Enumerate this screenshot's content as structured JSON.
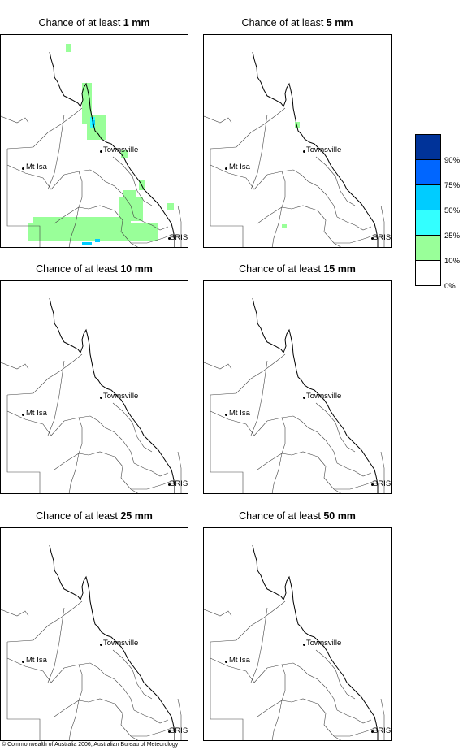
{
  "panels": [
    {
      "prefix": "Chance of at least ",
      "amount": "1 mm"
    },
    {
      "prefix": "Chance of at least ",
      "amount": "5 mm"
    },
    {
      "prefix": "Chance of at least ",
      "amount": "10 mm"
    },
    {
      "prefix": "Chance of at least ",
      "amount": "15 mm"
    },
    {
      "prefix": "Chance of at least ",
      "amount": "25 mm"
    },
    {
      "prefix": "Chance of at least ",
      "amount": "50 mm"
    }
  ],
  "places": {
    "townsville": "Townsville",
    "mt_isa": "Mt Isa",
    "brisbane": "BRIS"
  },
  "legend": {
    "labels": [
      "90%",
      "75%",
      "50%",
      "25%",
      "10%",
      "0%"
    ],
    "colors": [
      "#003399",
      "#0066ff",
      "#00ccff",
      "#33ffff",
      "#99ff99",
      "#ffffff"
    ]
  },
  "copyright": "© Commonwealth of Australia 2006, Australian Bureau of Meteorology"
}
